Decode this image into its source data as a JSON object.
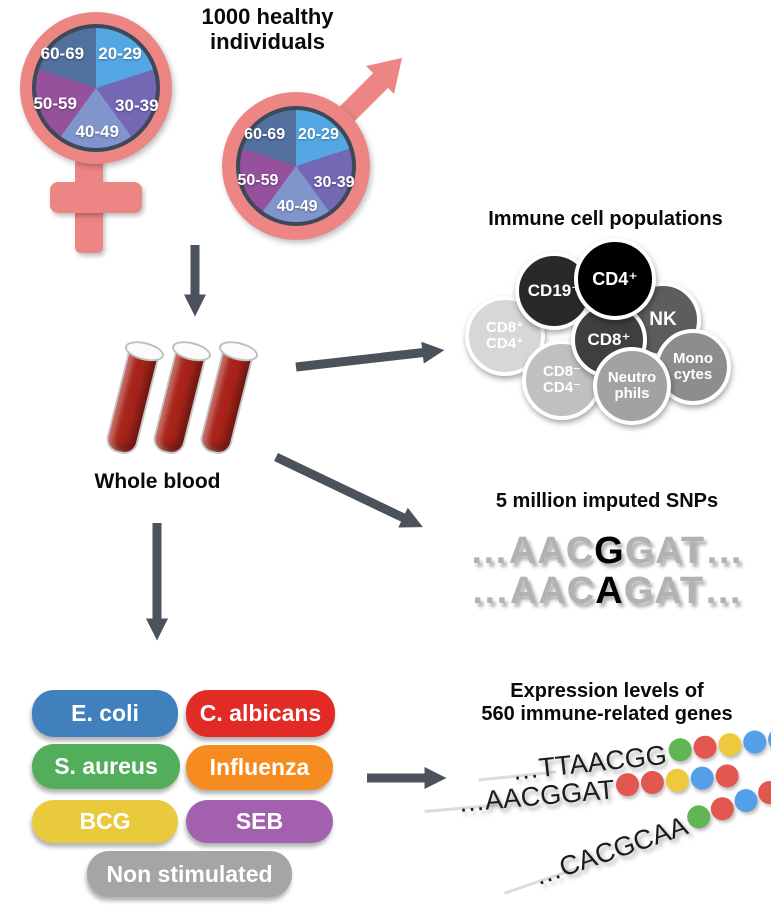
{
  "arrow_color": "#4b525c",
  "header": {
    "title": "1000 healthy\nindividuals"
  },
  "demographics": {
    "symbol_color": "#ed8585",
    "age_groups": [
      {
        "label": "20-29",
        "color": "#54a7e2"
      },
      {
        "label": "30-39",
        "color": "#7468b5"
      },
      {
        "label": "40-49",
        "color": "#8095cb"
      },
      {
        "label": "50-59",
        "color": "#95519c"
      },
      {
        "label": "60-69",
        "color": "#51709e"
      }
    ]
  },
  "whole_blood": {
    "label": "Whole blood",
    "blood_color": "#a8241a"
  },
  "immune_cells": {
    "title": "Immune cell populations",
    "cells": [
      {
        "id": "cd19",
        "label": "CD19⁺",
        "color": "#292929"
      },
      {
        "id": "cd4",
        "label": "CD4⁺",
        "color": "#000000"
      },
      {
        "id": "nk",
        "label": "NK",
        "color": "#5d5d5d"
      },
      {
        "id": "cd8",
        "label": "CD8⁺",
        "color": "#3f3f3f"
      },
      {
        "id": "cd8p_cd4p",
        "label": [
          "CD8⁺",
          "CD4⁺"
        ],
        "color": "#d7d7d7"
      },
      {
        "id": "cd8m_cd4m",
        "label": [
          "CD8⁻",
          "CD4⁻"
        ],
        "color": "#c0c0c0"
      },
      {
        "id": "neutrophils",
        "label": [
          "Neutro",
          "phils"
        ],
        "color": "#a2a2a2"
      },
      {
        "id": "monocytes",
        "label": [
          "Mono",
          "cytes"
        ],
        "color": "#8d8d8d"
      }
    ]
  },
  "snps": {
    "title": "5 million imputed SNPs",
    "rows": [
      {
        "prefix": "…AAC",
        "variant": "G",
        "suffix": "GAT…"
      },
      {
        "prefix": "…AAC",
        "variant": "A",
        "suffix": "GAT…"
      }
    ]
  },
  "stimuli": {
    "items": [
      {
        "label": "E. coli",
        "color": "#4080bd"
      },
      {
        "label": "C. albicans",
        "color": "#e22b24"
      },
      {
        "label": "S. aureus",
        "color": "#53ae5b"
      },
      {
        "label": "Influenza",
        "color": "#f68b1f"
      },
      {
        "label": "BCG",
        "color": "#e9ca3c"
      },
      {
        "label": "SEB",
        "color": "#a260ae"
      },
      {
        "label": "Non stimulated",
        "color": "#a5a5a5"
      }
    ]
  },
  "expression": {
    "title": "Expression levels of\n560 immune-related genes",
    "dot_colors": {
      "green": "#62b554",
      "red": "#e2574f",
      "yellow": "#efc93c",
      "blue": "#539fe8"
    },
    "strands": [
      {
        "sequence": "…TTAACGG",
        "dots": [
          "green",
          "red",
          "yellow",
          "blue",
          "blue"
        ]
      },
      {
        "sequence": "…AACGGAT",
        "dots": [
          "red",
          "red",
          "yellow",
          "blue",
          "red"
        ]
      },
      {
        "sequence": "…CACGCAA",
        "dots": [
          "green",
          "red",
          "blue",
          "red",
          "red"
        ]
      }
    ]
  }
}
